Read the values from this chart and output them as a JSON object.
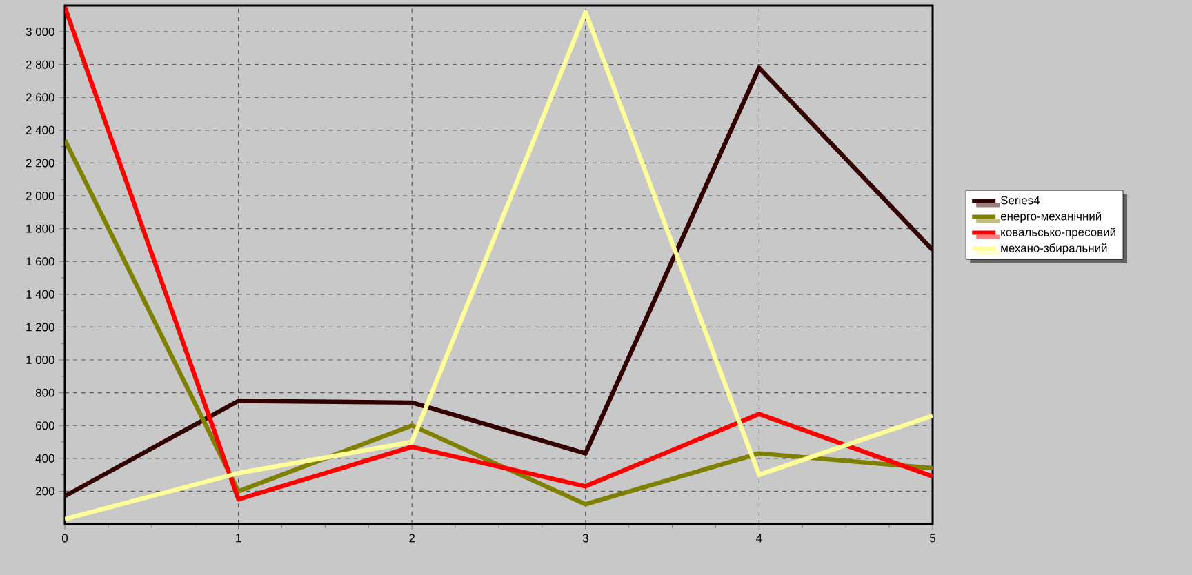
{
  "chart_data": {
    "type": "line",
    "x": [
      0,
      1,
      2,
      3,
      4,
      5
    ],
    "xlim": [
      0,
      5
    ],
    "xticks": [
      0,
      1,
      2,
      3,
      4,
      5
    ],
    "ylim": [
      0,
      3160
    ],
    "yticks": [
      200,
      400,
      600,
      800,
      {
        "value": 1000,
        "label": "1 000"
      },
      {
        "value": 1200,
        "label": "1 200"
      },
      {
        "value": 1400,
        "label": "1 400"
      },
      {
        "value": 1600,
        "label": "1 600"
      },
      {
        "value": 1800,
        "label": "1 800"
      },
      {
        "value": 2000,
        "label": "2 000"
      },
      {
        "value": 2200,
        "label": "2 200"
      },
      {
        "value": 2400,
        "label": "2 400"
      },
      {
        "value": 2600,
        "label": "2 600"
      },
      {
        "value": 2800,
        "label": "2 800"
      },
      {
        "value": 3000,
        "label": "3 000"
      }
    ],
    "grid": true,
    "legend": "right",
    "marker": "none",
    "line_style": "solid",
    "series": [
      {
        "name": "Series4",
        "color": "#330000",
        "values": [
          170,
          750,
          740,
          430,
          2780,
          1670
        ]
      },
      {
        "name": "енерго-механічний",
        "color": "#808000",
        "values": [
          2340,
          200,
          600,
          120,
          430,
          340
        ]
      },
      {
        "name": "ковальсько-пресовий",
        "color": "#ff0000",
        "values": [
          3150,
          150,
          470,
          230,
          670,
          290
        ]
      },
      {
        "name": "механо-збиральний",
        "color": "#ffff99",
        "values": [
          30,
          310,
          500,
          3120,
          300,
          660
        ]
      }
    ]
  }
}
